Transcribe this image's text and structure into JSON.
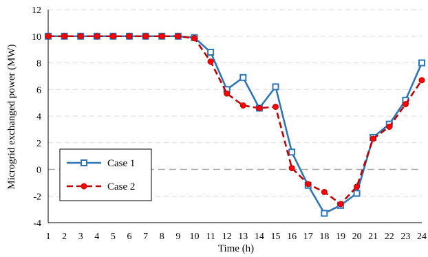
{
  "chart_data": {
    "type": "line",
    "title": "",
    "xlabel": "Time (h)",
    "ylabel": "Microgrid exchanged power (MW)",
    "x": [
      1,
      2,
      3,
      4,
      5,
      6,
      7,
      8,
      9,
      10,
      11,
      12,
      13,
      14,
      15,
      16,
      17,
      18,
      19,
      20,
      21,
      22,
      23,
      24
    ],
    "xlim": [
      1,
      24
    ],
    "ylim": [
      -4,
      12
    ],
    "yticks": [
      -4,
      -2,
      0,
      2,
      4,
      6,
      8,
      10,
      12
    ],
    "grid": "horizontal dashed",
    "legend_position": "lower-left",
    "series": [
      {
        "name": "Case 1",
        "color": "#2E75B6",
        "line_style": "solid",
        "marker": "square-open",
        "values": [
          10,
          10,
          10,
          10,
          10,
          10,
          10,
          10,
          10,
          9.9,
          8.8,
          6.0,
          6.9,
          4.6,
          6.2,
          1.3,
          -1.2,
          -3.3,
          -2.7,
          -1.8,
          2.4,
          3.4,
          5.2,
          8.0
        ]
      },
      {
        "name": "Case 2",
        "color": "#C00000",
        "line_style": "dashed",
        "marker": "circle-filled",
        "marker_color": "#FF0000",
        "values": [
          10,
          10,
          10,
          10,
          10,
          10,
          10,
          10,
          10,
          9.85,
          8.1,
          5.7,
          4.8,
          4.6,
          4.7,
          0.1,
          -1.1,
          -1.7,
          -2.6,
          -1.3,
          2.3,
          3.2,
          4.9,
          6.7
        ]
      }
    ]
  }
}
